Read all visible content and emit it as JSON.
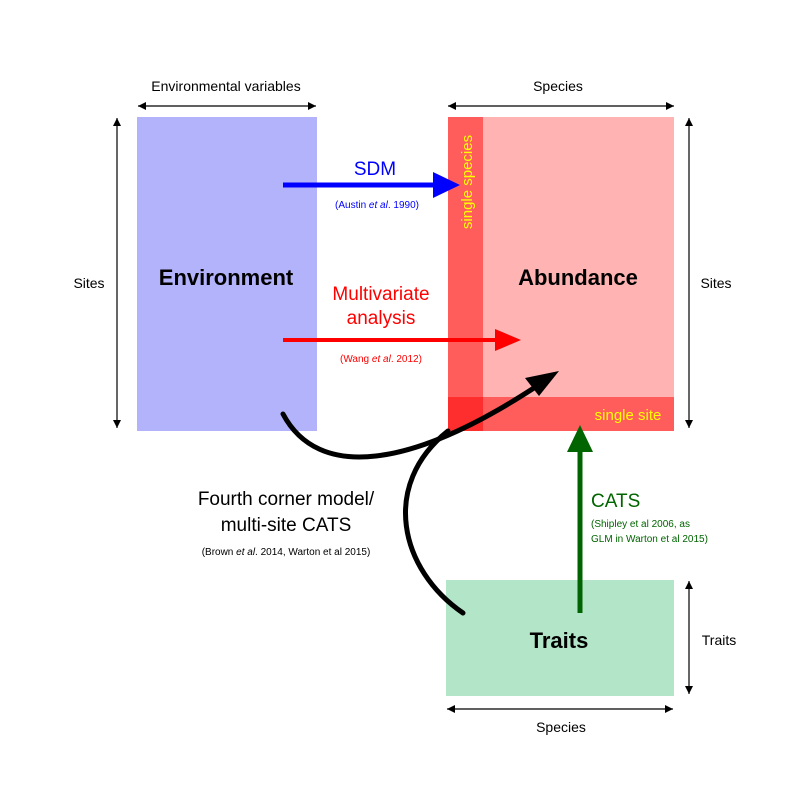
{
  "colors": {
    "environment_fill": "#b3b3fb",
    "abundance_fill": "#ffb3b3",
    "abundance_strip": "#ff5c5c",
    "abundance_overlap": "#ff2e2e",
    "traits_fill": "#b3e6c8",
    "sdm_arrow": "#0000ff",
    "multivariate_arrow": "#ff0000",
    "cats_arrow": "#006400",
    "fourth_corner_arrow": "#000000",
    "highlight_text": "#ffff00"
  },
  "axes": {
    "env_top": "Environmental variables",
    "abund_top": "Species",
    "env_left": "Sites",
    "abund_right": "Sites",
    "traits_right": "Traits",
    "traits_bottom": "Species"
  },
  "boxes": {
    "environment": "Environment",
    "abundance": "Abundance",
    "traits": "Traits",
    "single_species": "single species",
    "single_site": "single site"
  },
  "sdm": {
    "label": "SDM",
    "citation": {
      "pre": "(Austin ",
      "em": "et al",
      "post": ". 1990)"
    }
  },
  "multivariate": {
    "line1": "Multivariate",
    "line2": "analysis",
    "citation": {
      "pre": "(Wang ",
      "em": "et al",
      "post": ". 2012)"
    }
  },
  "fourth_corner": {
    "line1": "Fourth corner model/",
    "line2": "multi-site CATS",
    "citation": {
      "pre": "(Brown ",
      "em": "et al",
      "post": ". 2014, Warton et al 2015)"
    }
  },
  "cats": {
    "label": "CATS",
    "citation_line1": "(Shipley et al 2006, as",
    "citation_line2": "GLM in Warton et al 2015)"
  }
}
